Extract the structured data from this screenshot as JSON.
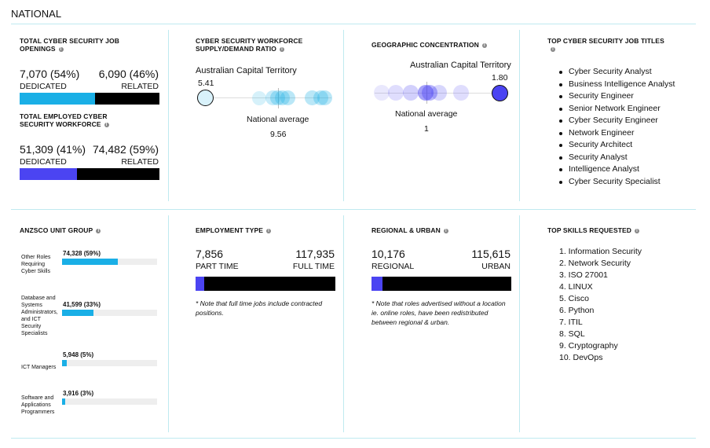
{
  "header": "NATIONAL",
  "colors": {
    "dedicated": "#1aafe6",
    "employed": "#4b44f2",
    "related": "#000000",
    "track": "#eeeeee",
    "rule": "#bfeaf0"
  },
  "openings": {
    "title": "TOTAL CYBER SECURITY JOB OPENINGS",
    "dedicated_value": "7,070 (54%)",
    "dedicated_label": "DEDICATED",
    "related_value": "6,090 (46%)",
    "related_label": "RELATED",
    "dedicated_fraction": 0.54
  },
  "employed": {
    "title": "TOTAL EMPLOYED CYBER SECURITY WORKFORCE",
    "dedicated_value": "51,309 (41%)",
    "dedicated_label": "DEDICATED",
    "related_value": "74,482 (59%)",
    "related_label": "RELATED",
    "dedicated_fraction": 0.41
  },
  "supply": {
    "title": "CYBER SECURITY WORKFORCE SUPPLY/DEMAND RATIO",
    "region": "Australian Capital Territory",
    "region_value": "5.41",
    "national_label": "National average",
    "national_value": "9.56"
  },
  "geo": {
    "title": "GEOGRAPHIC CONCENTRATION",
    "region": "Australian Capital Territory",
    "region_value": "1.80",
    "national_label": "National average",
    "national_value": "1"
  },
  "top_jobs": {
    "title": "TOP CYBER SECURITY JOB TITLES",
    "items": [
      "Cyber Security Analyst",
      "Business Intelligence Analyst",
      "Security Engineer",
      "Senior Network Engineer",
      "Cyber Security Engineer",
      "Network Engineer",
      "Security Architect",
      "Security Analyst",
      "Intelligence Analyst",
      "Cyber Security Specialist"
    ]
  },
  "anzsco": {
    "title": "ANZSCO UNIT GROUP",
    "items": [
      {
        "label": "Other Roles Requiring Cyber Skills",
        "value": "74,328 (59%)",
        "fraction": 0.59
      },
      {
        "label": "Database and Systems Administrators, and ICT Security Specialists",
        "value": "41,599 (33%)",
        "fraction": 0.33
      },
      {
        "label": "ICT Managers",
        "value": "5,948 (5%)",
        "fraction": 0.05
      },
      {
        "label": "Software and Applications Programmers",
        "value": "3,916 (3%)",
        "fraction": 0.03
      }
    ]
  },
  "employment": {
    "title": "EMPLOYMENT TYPE",
    "left_value": "7,856",
    "left_label": "PART TIME",
    "right_value": "117,935",
    "right_label": "FULL TIME",
    "left_fraction": 0.06,
    "note": "* Note that full time jobs include contracted positions."
  },
  "regional": {
    "title": "REGIONAL & URBAN",
    "left_value": "10,176",
    "left_label": "REGIONAL",
    "right_value": "115,615",
    "right_label": "URBAN",
    "left_fraction": 0.08,
    "note": "* Note that roles advertised without a location ie. online roles, have been redistributed between regional & urban."
  },
  "skills": {
    "title": "TOP SKILLS REQUESTED",
    "items": [
      "1. Information Security",
      "2. Network Security",
      "3. ISO 27001",
      "4. LINUX",
      "5. Cisco",
      "6. Python",
      "7. ITIL",
      "8. SQL",
      "9. Cryptography",
      "10. DevOps"
    ]
  }
}
